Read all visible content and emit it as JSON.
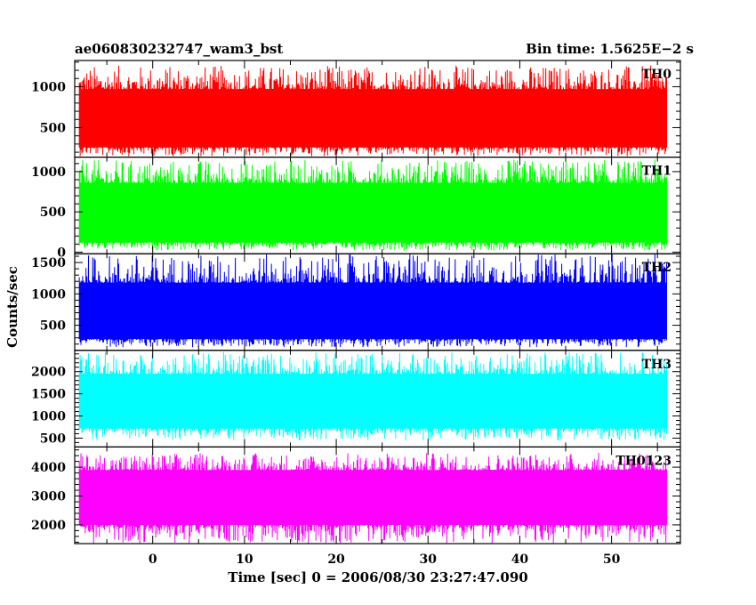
{
  "chart_data": {
    "type": "line",
    "title_left": "ae060830232747_wam3_bst",
    "title_right": "Bin time: 1.5625E−2 s",
    "xlabel": "Time [sec] 0 = 2006/08/30 23:27:47.090",
    "ylabel": "Counts/sec",
    "xlim": [
      -8.5,
      57.5
    ],
    "data_x_range": [
      -8.0,
      56.0
    ],
    "x_ticks": [
      0,
      10,
      20,
      30,
      40,
      50
    ],
    "x_tick_labels": [
      "0",
      "10",
      "20",
      "30",
      "40",
      "50"
    ],
    "panels": [
      {
        "name": "TH0",
        "color": "#ff0000",
        "ylim": [
          140,
          1320
        ],
        "y_ticks": [
          500,
          1000
        ],
        "y_tick_labels": [
          "500",
          "1000"
        ],
        "typical_low": 260,
        "typical_high": 970,
        "min": 150,
        "max": 1260
      },
      {
        "name": "TH1",
        "color": "#00ff00",
        "ylim": [
          -20,
          1180
        ],
        "y_ticks": [
          0,
          500,
          1000
        ],
        "y_tick_labels": [
          "0",
          "500",
          "1000"
        ],
        "typical_low": 120,
        "typical_high": 860,
        "min": 20,
        "max": 1150
      },
      {
        "name": "TH2",
        "color": "#0000ff",
        "ylim": [
          100,
          1640
        ],
        "y_ticks": [
          500,
          1000,
          1500
        ],
        "y_tick_labels": [
          "500",
          "1000",
          "1500"
        ],
        "typical_low": 280,
        "typical_high": 1180,
        "min": 150,
        "max": 1640
      },
      {
        "name": "TH3",
        "color": "#00ffff",
        "ylim": [
          300,
          2480
        ],
        "y_ticks": [
          500,
          1000,
          1500,
          2000
        ],
        "y_tick_labels": [
          "500",
          "1000",
          "1500",
          "2000"
        ],
        "typical_low": 720,
        "typical_high": 1950,
        "min": 450,
        "max": 2450
      },
      {
        "name": "TH0123",
        "color": "#ff00ff",
        "ylim": [
          1350,
          4700
        ],
        "y_ticks": [
          2000,
          3000,
          4000
        ],
        "y_tick_labels": [
          "2000",
          "3000",
          "4000"
        ],
        "typical_low": 2000,
        "typical_high": 3900,
        "min": 1350,
        "max": 4500
      }
    ]
  }
}
